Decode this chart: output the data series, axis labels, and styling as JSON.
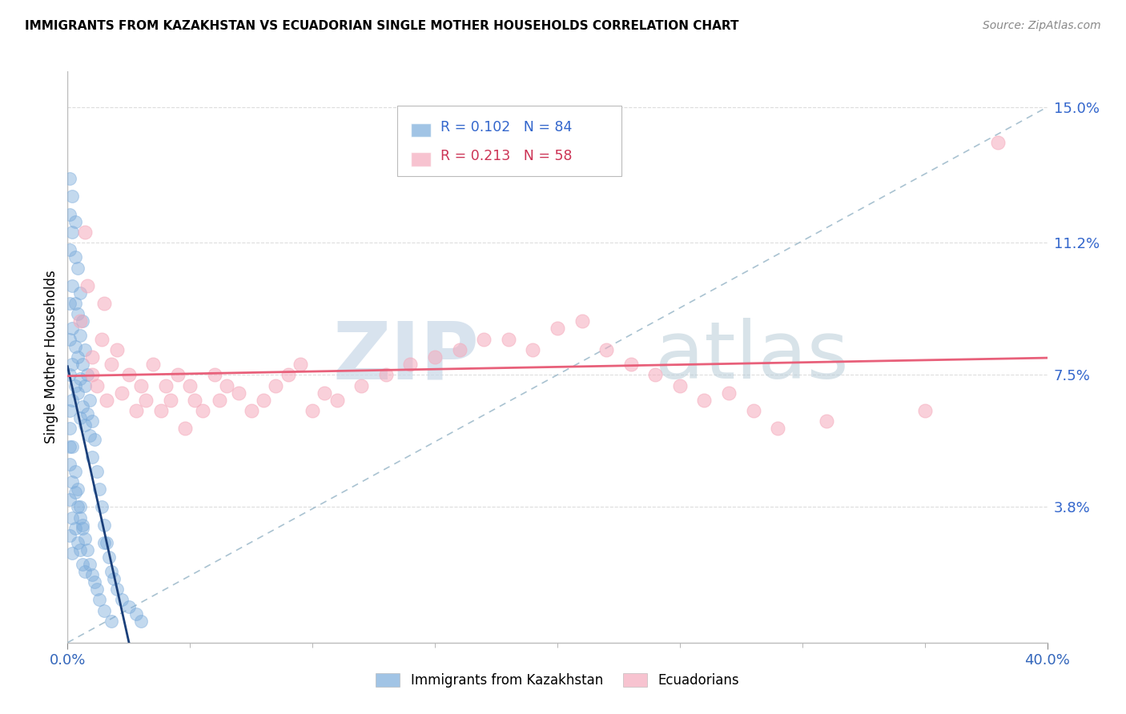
{
  "title": "IMMIGRANTS FROM KAZAKHSTAN VS ECUADORIAN SINGLE MOTHER HOUSEHOLDS CORRELATION CHART",
  "source": "Source: ZipAtlas.com",
  "ylabel": "Single Mother Households",
  "xlim": [
    0.0,
    0.4
  ],
  "ylim": [
    0.0,
    0.16
  ],
  "xtick_major": [
    0.0,
    0.4
  ],
  "xtick_major_labels": [
    "0.0%",
    "40.0%"
  ],
  "xtick_minor": [
    0.05,
    0.1,
    0.15,
    0.2,
    0.25,
    0.3,
    0.35
  ],
  "yticks_right": [
    0.038,
    0.075,
    0.112,
    0.15
  ],
  "ytick_labels_right": [
    "3.8%",
    "7.5%",
    "11.2%",
    "15.0%"
  ],
  "blue_color": "#7AABDB",
  "pink_color": "#F5AABC",
  "blue_line_color": "#1A3F7A",
  "pink_line_color": "#E8607A",
  "diag_line_color": "#A0BCCC",
  "legend_blue_r": "R = 0.102",
  "legend_blue_n": "N = 84",
  "legend_pink_r": "R = 0.213",
  "legend_pink_n": "N = 58",
  "blue_scatter_x": [
    0.001,
    0.001,
    0.001,
    0.001,
    0.001,
    0.001,
    0.001,
    0.001,
    0.002,
    0.002,
    0.002,
    0.002,
    0.002,
    0.002,
    0.003,
    0.003,
    0.003,
    0.003,
    0.003,
    0.004,
    0.004,
    0.004,
    0.004,
    0.005,
    0.005,
    0.005,
    0.005,
    0.006,
    0.006,
    0.006,
    0.007,
    0.007,
    0.007,
    0.008,
    0.008,
    0.009,
    0.009,
    0.01,
    0.01,
    0.011,
    0.012,
    0.013,
    0.014,
    0.015,
    0.015,
    0.016,
    0.017,
    0.018,
    0.019,
    0.02,
    0.022,
    0.025,
    0.028,
    0.03,
    0.001,
    0.001,
    0.001,
    0.002,
    0.002,
    0.002,
    0.003,
    0.003,
    0.004,
    0.004,
    0.005,
    0.005,
    0.006,
    0.006,
    0.007,
    0.007,
    0.008,
    0.009,
    0.01,
    0.011,
    0.012,
    0.013,
    0.015,
    0.018,
    0.001,
    0.002,
    0.003,
    0.004,
    0.005,
    0.006
  ],
  "blue_scatter_y": [
    0.13,
    0.12,
    0.11,
    0.095,
    0.085,
    0.075,
    0.065,
    0.055,
    0.125,
    0.115,
    0.1,
    0.088,
    0.078,
    0.068,
    0.118,
    0.108,
    0.095,
    0.083,
    0.072,
    0.105,
    0.092,
    0.08,
    0.07,
    0.098,
    0.086,
    0.074,
    0.063,
    0.09,
    0.078,
    0.066,
    0.082,
    0.072,
    0.061,
    0.075,
    0.064,
    0.068,
    0.058,
    0.062,
    0.052,
    0.057,
    0.048,
    0.043,
    0.038,
    0.033,
    0.028,
    0.028,
    0.024,
    0.02,
    0.018,
    0.015,
    0.012,
    0.01,
    0.008,
    0.006,
    0.05,
    0.04,
    0.03,
    0.045,
    0.035,
    0.025,
    0.042,
    0.032,
    0.038,
    0.028,
    0.035,
    0.026,
    0.032,
    0.022,
    0.029,
    0.02,
    0.026,
    0.022,
    0.019,
    0.017,
    0.015,
    0.012,
    0.009,
    0.006,
    0.06,
    0.055,
    0.048,
    0.043,
    0.038,
    0.033
  ],
  "pink_scatter_x": [
    0.005,
    0.007,
    0.008,
    0.01,
    0.01,
    0.012,
    0.014,
    0.015,
    0.016,
    0.018,
    0.02,
    0.022,
    0.025,
    0.028,
    0.03,
    0.032,
    0.035,
    0.038,
    0.04,
    0.042,
    0.045,
    0.048,
    0.05,
    0.052,
    0.055,
    0.06,
    0.062,
    0.065,
    0.07,
    0.075,
    0.08,
    0.085,
    0.09,
    0.095,
    0.1,
    0.105,
    0.11,
    0.12,
    0.13,
    0.14,
    0.15,
    0.16,
    0.17,
    0.18,
    0.19,
    0.2,
    0.21,
    0.22,
    0.23,
    0.24,
    0.25,
    0.26,
    0.27,
    0.28,
    0.29,
    0.31,
    0.35,
    0.38
  ],
  "pink_scatter_y": [
    0.09,
    0.115,
    0.1,
    0.08,
    0.075,
    0.072,
    0.085,
    0.095,
    0.068,
    0.078,
    0.082,
    0.07,
    0.075,
    0.065,
    0.072,
    0.068,
    0.078,
    0.065,
    0.072,
    0.068,
    0.075,
    0.06,
    0.072,
    0.068,
    0.065,
    0.075,
    0.068,
    0.072,
    0.07,
    0.065,
    0.068,
    0.072,
    0.075,
    0.078,
    0.065,
    0.07,
    0.068,
    0.072,
    0.075,
    0.078,
    0.08,
    0.082,
    0.085,
    0.085,
    0.082,
    0.088,
    0.09,
    0.082,
    0.078,
    0.075,
    0.072,
    0.068,
    0.07,
    0.065,
    0.06,
    0.062,
    0.065,
    0.14
  ]
}
